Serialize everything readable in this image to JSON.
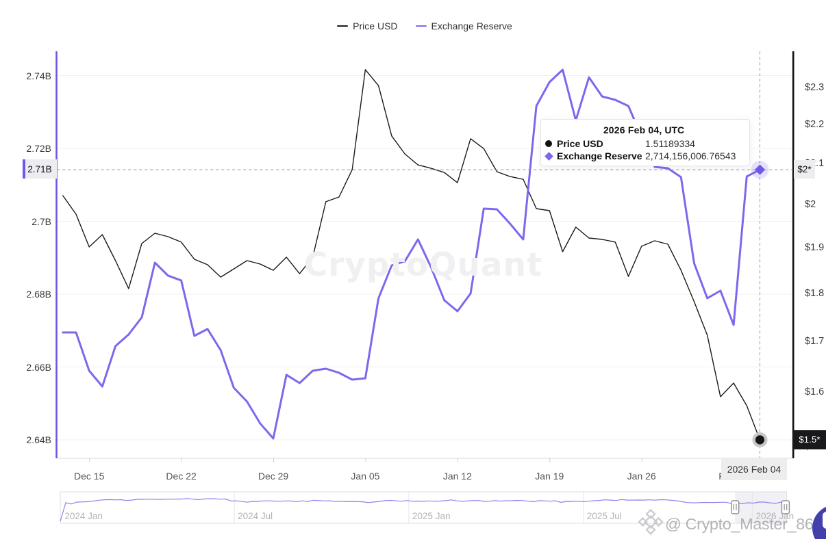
{
  "app": "CryptoQuant chart",
  "accent_color": "#7b68ee",
  "price_color": "#1a1a1a",
  "legend": [
    {
      "label": "Price USD",
      "color": "#1a1a1a"
    },
    {
      "label": "Exchange Reserve",
      "color": "#7b68ee"
    }
  ],
  "tooltip": {
    "title_date": "2026 Feb 04,",
    "title_zone": "UTC",
    "rows": [
      {
        "label": "Price USD",
        "value": "1.51189334",
        "marker": "black-dot"
      },
      {
        "label": "Exchange Reserve",
        "value": "2,714,156,006.76543",
        "marker": "purple-diamond"
      }
    ]
  },
  "crosshair": {
    "left_value_label": "2.71B",
    "right_value_label": "$2*",
    "price_last_label": "$1.5*",
    "date_label": "2026 Feb 04"
  },
  "watermarks": {
    "center": "CryptoQuant",
    "user": "@ Crypto_Master_86",
    "logo": "binance-diamond-logo"
  },
  "chart_data": {
    "type": "line",
    "title": "",
    "x_dates": [
      "2025-12-13",
      "2025-12-14",
      "2025-12-15",
      "2025-12-16",
      "2025-12-17",
      "2025-12-18",
      "2025-12-19",
      "2025-12-20",
      "2025-12-21",
      "2025-12-22",
      "2025-12-23",
      "2025-12-24",
      "2025-12-25",
      "2025-12-26",
      "2025-12-27",
      "2025-12-28",
      "2025-12-29",
      "2025-12-30",
      "2025-12-31",
      "2026-01-01",
      "2026-01-02",
      "2026-01-03",
      "2026-01-04",
      "2026-01-05",
      "2026-01-06",
      "2026-01-07",
      "2026-01-08",
      "2026-01-09",
      "2026-01-10",
      "2026-01-11",
      "2026-01-12",
      "2026-01-13",
      "2026-01-14",
      "2026-01-15",
      "2026-01-16",
      "2026-01-17",
      "2026-01-18",
      "2026-01-19",
      "2026-01-20",
      "2026-01-21",
      "2026-01-22",
      "2026-01-23",
      "2026-01-24",
      "2026-01-25",
      "2026-01-26",
      "2026-01-27",
      "2026-01-28",
      "2026-01-29",
      "2026-01-30",
      "2026-01-31",
      "2026-02-01",
      "2026-02-02",
      "2026-02-03",
      "2026-02-04"
    ],
    "x_tick_labels": [
      {
        "index": 2,
        "label": "Dec 15"
      },
      {
        "index": 9,
        "label": "Dec 22"
      },
      {
        "index": 16,
        "label": "Dec 29"
      },
      {
        "index": 23,
        "label": "Jan 05"
      },
      {
        "index": 30,
        "label": "Jan 12"
      },
      {
        "index": 37,
        "label": "Jan 19"
      },
      {
        "index": 44,
        "label": "Jan 26"
      },
      {
        "index": 51,
        "label": "Feb 02"
      }
    ],
    "series": [
      {
        "name": "Price USD",
        "axis": "right",
        "color": "#1a1a1a",
        "width": 1.4,
        "values": [
          2.0217,
          1.9776,
          1.902,
          1.93,
          1.8712,
          1.81,
          1.9097,
          1.9332,
          1.9253,
          1.9129,
          1.8742,
          1.8621,
          1.8349,
          1.8529,
          1.8712,
          1.8636,
          1.8499,
          1.8789,
          1.8424,
          1.8789,
          2.007,
          2.0184,
          2.0849,
          2.3486,
          2.3043,
          2.1704,
          2.1246,
          2.0969,
          2.0883,
          2.0781,
          2.0529,
          2.1633,
          2.1379,
          2.08,
          2.0681,
          2.0614,
          1.9906,
          1.9858,
          1.8911,
          1.9474,
          1.9221,
          1.919,
          1.9129,
          1.8364,
          1.9035,
          1.9159,
          1.9081,
          1.8499,
          1.7821,
          1.7122,
          1.5914,
          1.6176,
          1.5746,
          1.51189334
        ]
      },
      {
        "name": "Exchange Reserve",
        "axis": "left",
        "color": "#7b68ee",
        "width": 3,
        "values": [
          2.66948,
          2.66948,
          2.65897,
          2.65465,
          2.66573,
          2.66892,
          2.67362,
          2.68864,
          2.68507,
          2.68376,
          2.66854,
          2.67042,
          2.6646,
          2.65427,
          2.65052,
          2.64451,
          2.64038,
          2.65784,
          2.65559,
          2.65897,
          2.65953,
          2.6584,
          2.65653,
          2.6569,
          2.67887,
          2.68789,
          2.68901,
          2.69502,
          2.68732,
          2.67831,
          2.67531,
          2.68019,
          2.70347,
          2.70329,
          2.69934,
          2.69502,
          2.73164,
          2.73822,
          2.7416,
          2.7277,
          2.73953,
          2.73427,
          2.73333,
          2.73164,
          2.72319,
          2.71493,
          2.71455,
          2.71211,
          2.68845,
          2.67887,
          2.68094,
          2.67155,
          2.7123,
          2.71415600676543
        ]
      }
    ],
    "left_axis": {
      "title": "Exchange Reserve",
      "unit": "B",
      "scale": "linear",
      "ticks": [
        {
          "v": 2.74,
          "label": "2.74B"
        },
        {
          "v": 2.72,
          "label": "2.72B"
        },
        {
          "v": 2.7,
          "label": "2.7B"
        },
        {
          "v": 2.68,
          "label": "2.68B"
        },
        {
          "v": 2.66,
          "label": "2.66B"
        },
        {
          "v": 2.64,
          "label": "2.64B"
        }
      ]
    },
    "right_axis": {
      "title": "Price USD",
      "unit": "$",
      "scale": "log",
      "ticks": [
        {
          "v": 2.3,
          "label": "$2.3"
        },
        {
          "v": 2.2,
          "label": "$2.2"
        },
        {
          "v": 2.1,
          "label": "$2.1"
        },
        {
          "v": 2.0,
          "label": "$2"
        },
        {
          "v": 1.9,
          "label": "$1.9"
        },
        {
          "v": 1.8,
          "label": "$1.8"
        },
        {
          "v": 1.7,
          "label": "$1.7"
        },
        {
          "v": 1.6,
          "label": "$1.6"
        },
        {
          "v": 1.5,
          "label": "$1.5"
        }
      ]
    },
    "crosshair_point": {
      "date": "2026-02-04",
      "price": 1.51189334,
      "reserve": 2714156006.76543
    },
    "grid": "horizontal",
    "legend_position": "top-center",
    "navigator": {
      "labels": [
        {
          "x": 0.006,
          "label": "2024 Jan"
        },
        {
          "x": 0.2443,
          "label": "2024 Jul"
        },
        {
          "x": 0.4846,
          "label": "2025 Jan"
        },
        {
          "x": 0.7249,
          "label": "2025 Jul"
        },
        {
          "x": 0.9576,
          "label": "2026 Jan"
        }
      ],
      "gridline_x": [
        0.2396,
        0.4799,
        0.7202,
        0.9529
      ],
      "selection": [
        0.929,
        0.9985
      ],
      "series_norm": [
        0.935,
        0.348,
        0.388,
        0.329,
        0.322,
        0.314,
        0.294,
        0.267,
        0.253,
        0.248,
        0.256,
        0.25,
        0.276,
        0.262,
        0.239,
        0.239,
        0.234,
        0.233,
        0.245,
        0.235,
        0.235,
        0.23,
        0.231,
        0.213,
        0.233,
        0.248,
        0.231,
        0.22,
        0.22,
        0.235,
        0.226,
        0.29,
        0.287,
        0.308,
        0.33,
        0.303,
        0.304,
        0.287,
        0.286,
        0.296,
        0.3,
        0.29,
        0.293,
        0.31,
        0.287,
        0.308,
        0.267,
        0.28,
        0.289,
        0.285,
        0.311,
        0.299,
        0.313,
        0.307,
        0.313,
        0.317,
        0.343,
        0.324,
        0.307,
        0.281,
        0.272,
        0.286,
        0.299,
        0.279,
        0.3,
        0.294,
        0.305,
        0.289,
        0.301,
        0.293,
        0.282,
        0.256,
        0.288,
        0.3,
        0.291,
        0.281,
        0.276,
        0.304,
        0.299,
        0.281,
        0.296,
        0.285,
        0.283,
        0.275,
        0.279,
        0.298,
        0.312,
        0.283,
        0.287,
        0.297,
        0.285,
        0.336,
        0.305,
        0.306,
        0.299,
        0.311,
        0.301,
        0.283,
        0.275,
        0.255,
        0.262,
        0.279,
        0.244,
        0.263,
        0.262,
        0.261,
        0.262,
        0.254,
        0.266,
        0.252,
        0.255,
        0.269,
        0.285,
        0.316,
        0.341,
        0.349,
        0.345,
        0.337,
        0.339,
        0.34,
        0.332,
        0.332,
        0.371,
        0.376,
        0.37,
        0.349,
        0.358,
        0.325,
        0.327,
        0.352,
        0.368,
        0.329,
        0.335
      ]
    }
  }
}
